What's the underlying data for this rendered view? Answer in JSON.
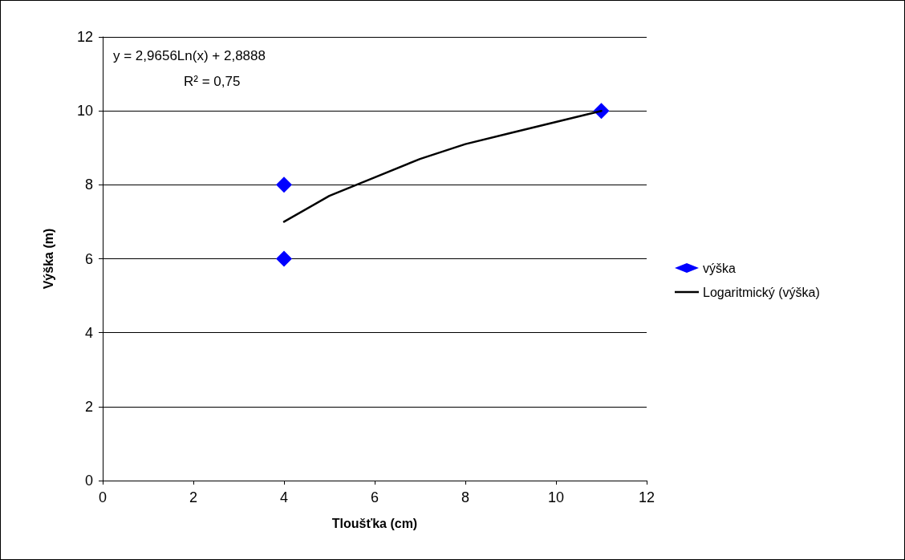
{
  "chart_data": {
    "type": "scatter",
    "xlabel": "Tloušťka (cm)",
    "ylabel": "Výška (m)",
    "xlim": [
      0,
      12
    ],
    "xticks": [
      0,
      2,
      4,
      6,
      8,
      10,
      12
    ],
    "ylim": [
      0,
      12
    ],
    "yticks": [
      0,
      2,
      4,
      6,
      8,
      10,
      12
    ],
    "grid": "y",
    "legend": "right",
    "annotations": [
      "y = 2,9656Ln(x) + 2,8888",
      "R² = 0,75"
    ],
    "series": [
      {
        "name": "výška",
        "color": "#0000ff",
        "marker": "diamond",
        "x": [
          4,
          4,
          11
        ],
        "values": [
          8,
          6,
          10
        ]
      },
      {
        "name": "Logaritmický (výška)",
        "type": "line",
        "color": "#000000",
        "marker": "none",
        "line_style": "solid",
        "x": [
          4,
          5,
          6,
          7,
          8,
          9,
          10,
          11
        ],
        "values": [
          7.0,
          7.7,
          8.2,
          8.7,
          9.1,
          9.4,
          9.7,
          10.0
        ]
      }
    ]
  }
}
